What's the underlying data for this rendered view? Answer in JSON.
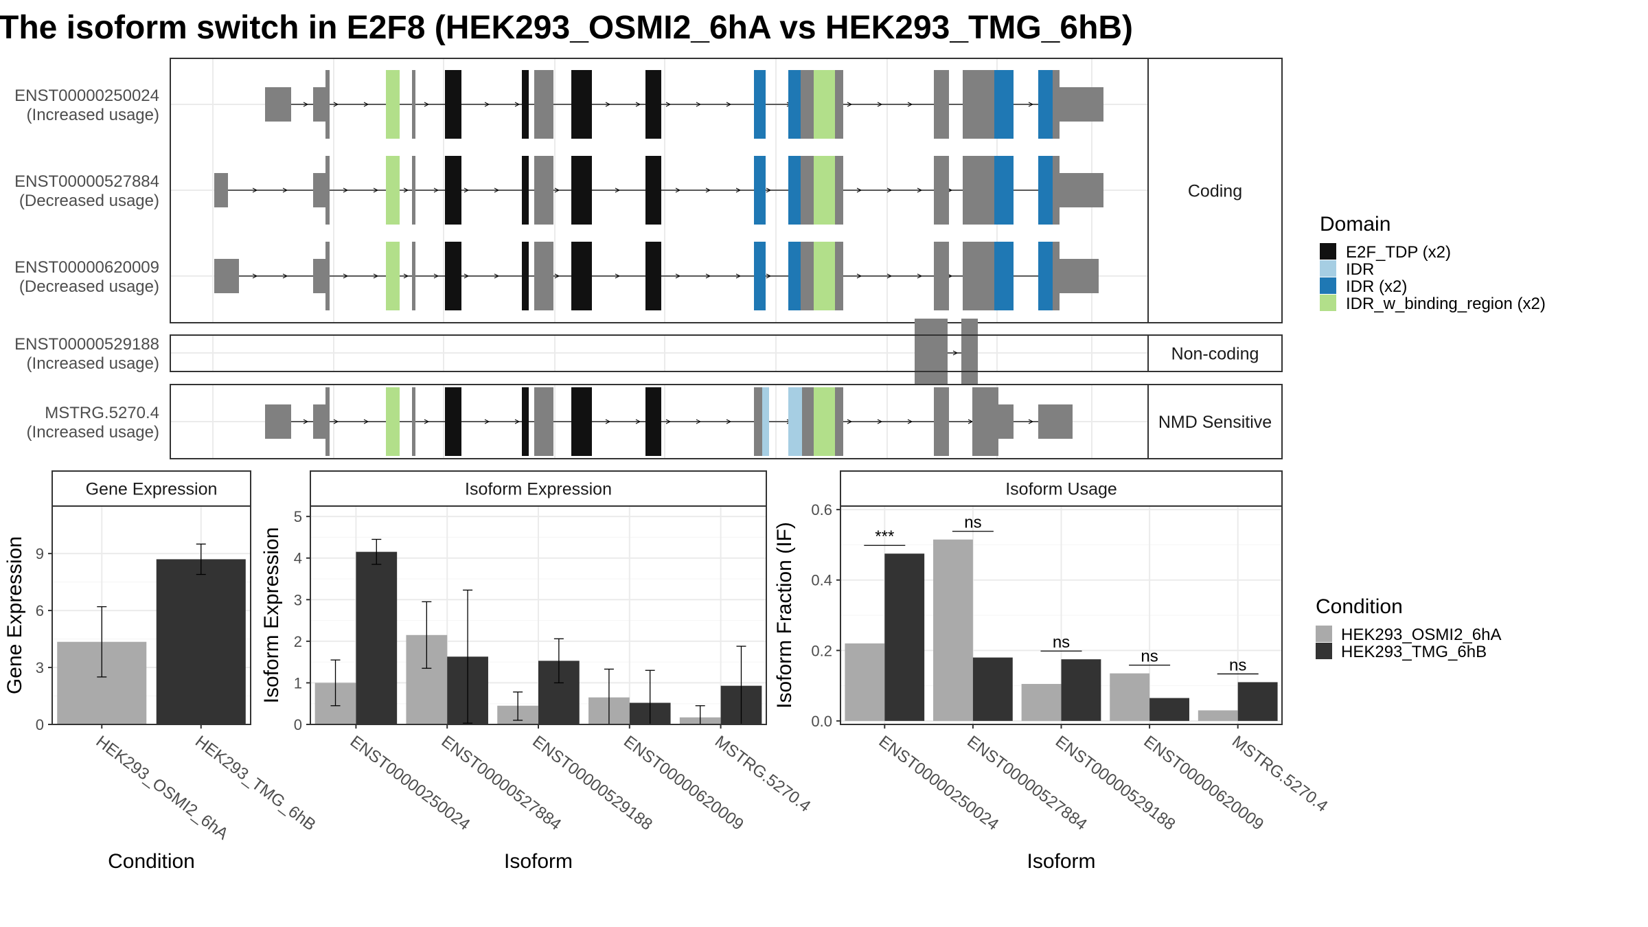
{
  "title": "The isoform switch in E2F8 (HEK293_OSMI2_6hA vs HEK293_TMG_6hB)",
  "colors": {
    "cond_a": "#aaaaaa",
    "cond_b": "#333333",
    "exon": "#808080",
    "E2F_TDP (x2)": "#111111",
    "IDR": "#a6cee3",
    "IDR (x2)": "#1f78b4",
    "IDR_w_binding_region (x2)": "#b2df8a"
  },
  "structure": {
    "facets": [
      "Coding",
      "Non-coding",
      "NMD Sensitive"
    ],
    "transcripts": [
      {
        "id": "ENST00000250024",
        "usage": "(Increased usage)",
        "facet": "Coding"
      },
      {
        "id": "ENST00000527884",
        "usage": "(Decreased usage)",
        "facet": "Coding"
      },
      {
        "id": "ENST00000620009",
        "usage": "(Decreased usage)",
        "facet": "Coding"
      },
      {
        "id": "ENST00000529188",
        "usage": "(Increased usage)",
        "facet": "Non-coding"
      },
      {
        "id": "MSTRG.5270.4",
        "usage": "(Increased usage)",
        "facet": "NMD Sensitive"
      }
    ]
  },
  "legends": {
    "domain_title": "Domain",
    "domain_items": [
      "E2F_TDP (x2)",
      "IDR",
      "IDR (x2)",
      "IDR_w_binding_region (x2)"
    ],
    "condition_title": "Condition",
    "condition_items": [
      "HEK293_OSMI2_6hA",
      "HEK293_TMG_6hB"
    ]
  },
  "chart_data": [
    {
      "type": "bar",
      "title": "Gene Expression",
      "xlabel": "Condition",
      "ylabel": "Gene Expression",
      "categories": [
        "HEK293_OSMI2_6hA",
        "HEK293_TMG_6hB"
      ],
      "values": [
        4.35,
        8.7
      ],
      "errors": [
        [
          2.5,
          6.2
        ],
        [
          7.9,
          9.5
        ]
      ],
      "ylim": [
        0,
        11.5
      ],
      "yticks": [
        0,
        3,
        6,
        9
      ]
    },
    {
      "type": "bar",
      "title": "Isoform Expression",
      "xlabel": "Isoform",
      "ylabel": "Isoform Expression",
      "categories": [
        "ENST00000250024",
        "ENST00000527884",
        "ENST00000529188",
        "ENST00000620009",
        "MSTRG.5270.4"
      ],
      "series": [
        {
          "name": "HEK293_OSMI2_6hA",
          "values": [
            1.0,
            2.15,
            0.45,
            0.65,
            0.17
          ],
          "errors": [
            [
              0.45,
              1.55
            ],
            [
              1.35,
              2.95
            ],
            [
              0.1,
              0.78
            ],
            [
              0.0,
              1.33
            ],
            [
              0.0,
              0.45
            ]
          ]
        },
        {
          "name": "HEK293_TMG_6hB",
          "values": [
            4.15,
            1.63,
            1.53,
            0.52,
            0.93
          ],
          "errors": [
            [
              3.85,
              4.45
            ],
            [
              0.03,
              3.23
            ],
            [
              1.0,
              2.06
            ],
            [
              0.0,
              1.3
            ],
            [
              0.0,
              1.88
            ]
          ]
        }
      ],
      "ylim": [
        0,
        5.25
      ],
      "yticks": [
        0,
        1,
        2,
        3,
        4,
        5
      ]
    },
    {
      "type": "bar",
      "title": "Isoform Usage",
      "xlabel": "Isoform",
      "ylabel": "Isoform Fraction (IF)",
      "categories": [
        "ENST00000250024",
        "ENST00000527884",
        "ENST00000529188",
        "ENST00000620009",
        "MSTRG.5270.4"
      ],
      "series": [
        {
          "name": "HEK293_OSMI2_6hA",
          "values": [
            0.22,
            0.515,
            0.105,
            0.135,
            0.03
          ]
        },
        {
          "name": "HEK293_TMG_6hB",
          "values": [
            0.475,
            0.18,
            0.175,
            0.065,
            0.11
          ]
        }
      ],
      "significance": [
        "***",
        "ns",
        "ns",
        "ns",
        "ns"
      ],
      "ylim": [
        -0.01,
        0.61
      ],
      "yticks": [
        0.0,
        0.2,
        0.4,
        0.6
      ],
      "ytick_labels": [
        "0.0",
        "0.2",
        "0.4",
        "0.6"
      ]
    }
  ]
}
